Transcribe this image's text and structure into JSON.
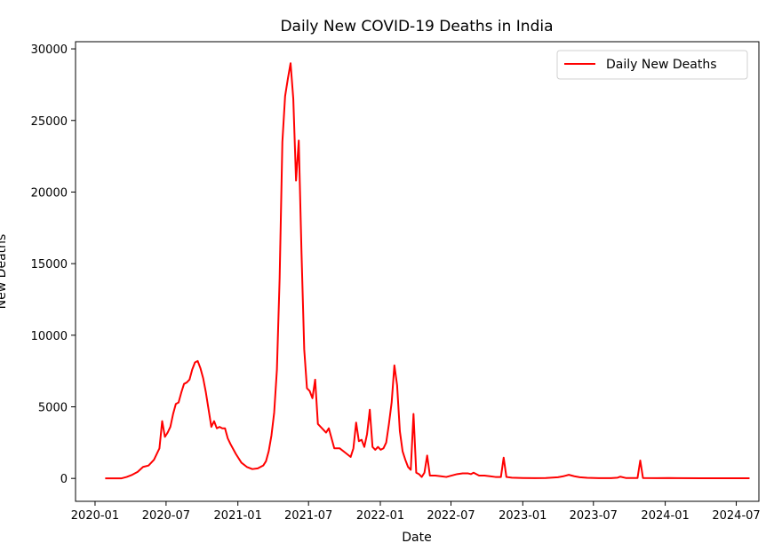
{
  "chart_data": {
    "type": "line",
    "title": "Daily New COVID-19 Deaths in India",
    "xlabel": "Date",
    "ylabel": "New Deaths",
    "x_ticks": [
      "2020-01",
      "2020-07",
      "2021-01",
      "2021-07",
      "2022-01",
      "2022-07",
      "2023-01",
      "2023-07",
      "2024-01",
      "2024-07"
    ],
    "y_ticks": [
      0,
      5000,
      10000,
      15000,
      20000,
      25000,
      30000
    ],
    "xlim": [
      "2019-11-12",
      "2024-08-28"
    ],
    "ylim": [
      -1600,
      30500
    ],
    "grid": false,
    "legend_position": "top-right",
    "series": [
      {
        "name": "Daily New Deaths",
        "color": "#ff0000",
        "points": [
          [
            "2020-01-27",
            0
          ],
          [
            "2020-02-15",
            0
          ],
          [
            "2020-03-08",
            0
          ],
          [
            "2020-03-22",
            100
          ],
          [
            "2020-04-05",
            250
          ],
          [
            "2020-04-19",
            450
          ],
          [
            "2020-05-03",
            800
          ],
          [
            "2020-05-17",
            900
          ],
          [
            "2020-05-31",
            1300
          ],
          [
            "2020-06-14",
            2100
          ],
          [
            "2020-06-21",
            4000
          ],
          [
            "2020-06-28",
            2900
          ],
          [
            "2020-07-05",
            3200
          ],
          [
            "2020-07-12",
            3600
          ],
          [
            "2020-07-19",
            4500
          ],
          [
            "2020-07-26",
            5200
          ],
          [
            "2020-08-02",
            5300
          ],
          [
            "2020-08-09",
            6000
          ],
          [
            "2020-08-16",
            6600
          ],
          [
            "2020-08-23",
            6700
          ],
          [
            "2020-08-30",
            6900
          ],
          [
            "2020-09-06",
            7600
          ],
          [
            "2020-09-13",
            8100
          ],
          [
            "2020-09-20",
            8200
          ],
          [
            "2020-09-27",
            7700
          ],
          [
            "2020-10-04",
            7000
          ],
          [
            "2020-10-11",
            6000
          ],
          [
            "2020-10-18",
            4800
          ],
          [
            "2020-10-25",
            3600
          ],
          [
            "2020-11-01",
            4000
          ],
          [
            "2020-11-08",
            3500
          ],
          [
            "2020-11-15",
            3600
          ],
          [
            "2020-11-22",
            3500
          ],
          [
            "2020-11-29",
            3500
          ],
          [
            "2020-12-06",
            2800
          ],
          [
            "2020-12-13",
            2400
          ],
          [
            "2020-12-27",
            1700
          ],
          [
            "2021-01-10",
            1100
          ],
          [
            "2021-01-24",
            800
          ],
          [
            "2021-02-07",
            650
          ],
          [
            "2021-02-21",
            700
          ],
          [
            "2021-03-07",
            900
          ],
          [
            "2021-03-14",
            1200
          ],
          [
            "2021-03-21",
            1900
          ],
          [
            "2021-03-28",
            3000
          ],
          [
            "2021-04-04",
            4600
          ],
          [
            "2021-04-11",
            7600
          ],
          [
            "2021-04-18",
            14000
          ],
          [
            "2021-04-25",
            23500
          ],
          [
            "2021-05-02",
            26700
          ],
          [
            "2021-05-09",
            27900
          ],
          [
            "2021-05-16",
            29000
          ],
          [
            "2021-05-23",
            26500
          ],
          [
            "2021-05-30",
            20800
          ],
          [
            "2021-06-06",
            23600
          ],
          [
            "2021-06-13",
            15800
          ],
          [
            "2021-06-20",
            9000
          ],
          [
            "2021-06-27",
            6300
          ],
          [
            "2021-07-04",
            6100
          ],
          [
            "2021-07-11",
            5600
          ],
          [
            "2021-07-18",
            6900
          ],
          [
            "2021-07-25",
            3800
          ],
          [
            "2021-08-01",
            3600
          ],
          [
            "2021-08-08",
            3400
          ],
          [
            "2021-08-15",
            3200
          ],
          [
            "2021-08-22",
            3500
          ],
          [
            "2021-08-29",
            2800
          ],
          [
            "2021-09-05",
            2100
          ],
          [
            "2021-09-19",
            2100
          ],
          [
            "2021-10-03",
            1800
          ],
          [
            "2021-10-17",
            1500
          ],
          [
            "2021-10-24",
            2100
          ],
          [
            "2021-10-31",
            3900
          ],
          [
            "2021-11-07",
            2600
          ],
          [
            "2021-11-14",
            2700
          ],
          [
            "2021-11-21",
            2200
          ],
          [
            "2021-11-28",
            3100
          ],
          [
            "2021-12-05",
            4800
          ],
          [
            "2021-12-12",
            2200
          ],
          [
            "2021-12-19",
            2000
          ],
          [
            "2021-12-26",
            2200
          ],
          [
            "2022-01-02",
            2000
          ],
          [
            "2022-01-09",
            2100
          ],
          [
            "2022-01-16",
            2500
          ],
          [
            "2022-01-23",
            3800
          ],
          [
            "2022-01-30",
            5300
          ],
          [
            "2022-02-06",
            7900
          ],
          [
            "2022-02-13",
            6500
          ],
          [
            "2022-02-20",
            3300
          ],
          [
            "2022-02-27",
            1900
          ],
          [
            "2022-03-06",
            1300
          ],
          [
            "2022-03-13",
            800
          ],
          [
            "2022-03-20",
            600
          ],
          [
            "2022-03-27",
            4500
          ],
          [
            "2022-04-03",
            400
          ],
          [
            "2022-04-10",
            300
          ],
          [
            "2022-04-17",
            100
          ],
          [
            "2022-04-24",
            400
          ],
          [
            "2022-05-01",
            1600
          ],
          [
            "2022-05-08",
            200
          ],
          [
            "2022-05-22",
            200
          ],
          [
            "2022-06-05",
            150
          ],
          [
            "2022-06-19",
            100
          ],
          [
            "2022-07-03",
            200
          ],
          [
            "2022-07-17",
            300
          ],
          [
            "2022-07-31",
            350
          ],
          [
            "2022-08-14",
            350
          ],
          [
            "2022-08-21",
            300
          ],
          [
            "2022-08-28",
            400
          ],
          [
            "2022-09-04",
            300
          ],
          [
            "2022-09-11",
            200
          ],
          [
            "2022-09-25",
            200
          ],
          [
            "2022-10-09",
            150
          ],
          [
            "2022-10-23",
            100
          ],
          [
            "2022-11-06",
            100
          ],
          [
            "2022-11-13",
            1450
          ],
          [
            "2022-11-20",
            100
          ],
          [
            "2022-12-04",
            50
          ],
          [
            "2023-01-01",
            30
          ],
          [
            "2023-02-01",
            20
          ],
          [
            "2023-03-01",
            30
          ],
          [
            "2023-04-01",
            80
          ],
          [
            "2023-04-15",
            150
          ],
          [
            "2023-04-29",
            250
          ],
          [
            "2023-05-13",
            150
          ],
          [
            "2023-05-27",
            80
          ],
          [
            "2023-06-15",
            40
          ],
          [
            "2023-07-15",
            20
          ],
          [
            "2023-08-15",
            20
          ],
          [
            "2023-09-01",
            50
          ],
          [
            "2023-09-08",
            120
          ],
          [
            "2023-09-22",
            30
          ],
          [
            "2023-10-22",
            30
          ],
          [
            "2023-10-29",
            1250
          ],
          [
            "2023-11-05",
            30
          ],
          [
            "2023-12-10",
            20
          ],
          [
            "2024-01-10",
            30
          ],
          [
            "2024-02-01",
            20
          ],
          [
            "2024-04-01",
            10
          ],
          [
            "2024-06-01",
            10
          ],
          [
            "2024-08-04",
            10
          ]
        ]
      }
    ]
  }
}
